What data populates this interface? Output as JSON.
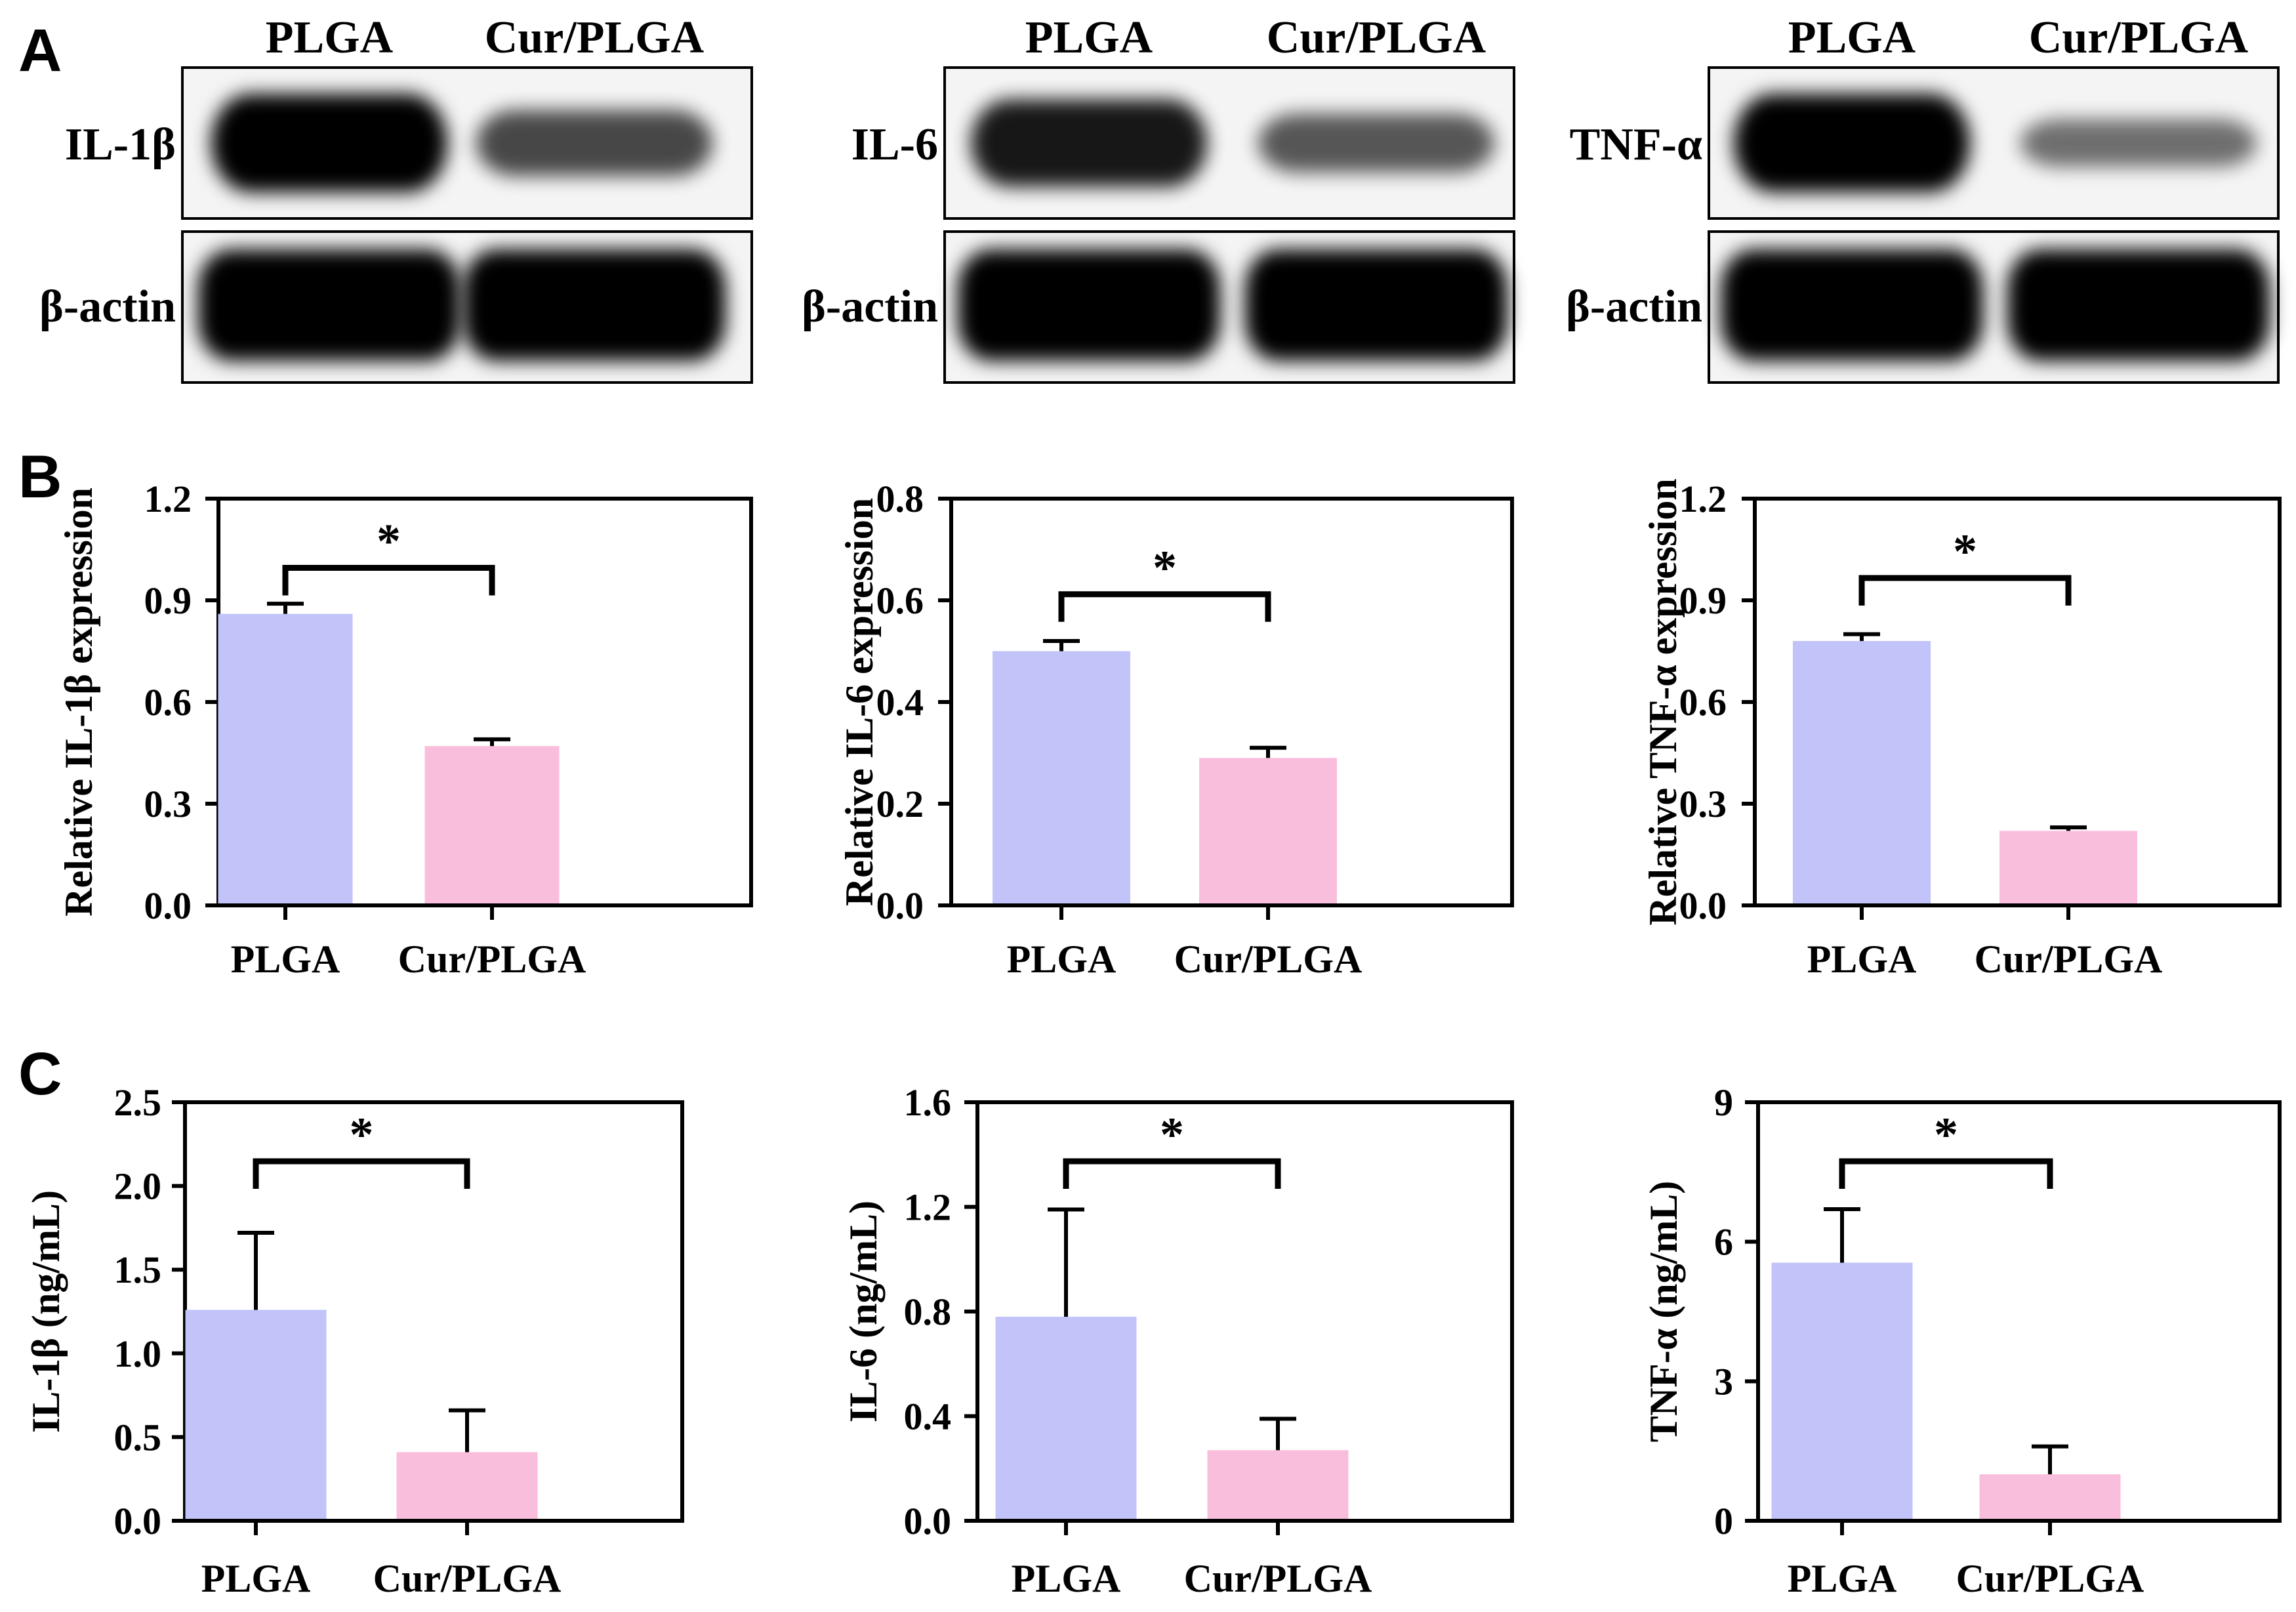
{
  "panel_labels": {
    "A": "A",
    "B": "B",
    "C": "C"
  },
  "colors": {
    "plga": "#c1c3f9",
    "cur_plga": "#fabedd",
    "axis": "#000000"
  },
  "blots": [
    {
      "lane_labels": [
        "PLGA",
        "Cur/PLGA"
      ],
      "protein_label": "IL-1β",
      "loading_label": "β-actin",
      "protein_band_intensity": [
        1.0,
        0.55
      ],
      "loading_band_intensity": [
        1.0,
        1.0
      ]
    },
    {
      "lane_labels": [
        "PLGA",
        "Cur/PLGA"
      ],
      "protein_label": "IL-6",
      "loading_label": "β-actin",
      "protein_band_intensity": [
        0.85,
        0.45
      ],
      "loading_band_intensity": [
        1.0,
        1.0
      ]
    },
    {
      "lane_labels": [
        "PLGA",
        "Cur/PLGA"
      ],
      "protein_label": "TNF-α",
      "loading_label": "β-actin",
      "protein_band_intensity": [
        1.0,
        0.3
      ],
      "loading_band_intensity": [
        1.0,
        1.0
      ]
    }
  ],
  "chart_data": [
    {
      "type": "bar",
      "panel": "B",
      "categories": [
        "PLGA",
        "Cur/PLGA"
      ],
      "values": [
        0.86,
        0.47
      ],
      "errors": [
        0.03,
        0.02
      ],
      "ylabel": "Relative IL-1β expression",
      "ylim": [
        0,
        1.2
      ],
      "yticks": [
        "0.0",
        "0.3",
        "0.6",
        "0.9",
        "1.2"
      ],
      "significance": "*"
    },
    {
      "type": "bar",
      "panel": "B",
      "categories": [
        "PLGA",
        "Cur/PLGA"
      ],
      "values": [
        0.5,
        0.29
      ],
      "errors": [
        0.02,
        0.02
      ],
      "ylabel": "Relative IL-6 expression",
      "ylim": [
        0,
        0.8
      ],
      "yticks": [
        "0.0",
        "0.2",
        "0.4",
        "0.6",
        "0.8"
      ],
      "significance": "*"
    },
    {
      "type": "bar",
      "panel": "B",
      "categories": [
        "PLGA",
        "Cur/PLGA"
      ],
      "values": [
        0.78,
        0.22
      ],
      "errors": [
        0.02,
        0.01
      ],
      "ylabel": "Relative TNF-α expression",
      "ylim": [
        0,
        1.2
      ],
      "yticks": [
        "0.0",
        "0.3",
        "0.6",
        "0.9",
        "1.2"
      ],
      "significance": "*"
    },
    {
      "type": "bar",
      "panel": "C",
      "categories": [
        "PLGA",
        "Cur/PLGA"
      ],
      "values": [
        1.26,
        0.41
      ],
      "errors": [
        0.46,
        0.25
      ],
      "ylabel": "IL-1β (ng/mL)",
      "ylim": [
        0,
        2.5
      ],
      "yticks": [
        "0.0",
        "0.5",
        "1.0",
        "1.5",
        "2.0",
        "2.5"
      ],
      "significance": "*"
    },
    {
      "type": "bar",
      "panel": "C",
      "categories": [
        "PLGA",
        "Cur/PLGA"
      ],
      "values": [
        0.78,
        0.27
      ],
      "errors": [
        0.41,
        0.12
      ],
      "ylabel": "IL-6 (ng/mL)",
      "ylim": [
        0,
        1.6
      ],
      "yticks": [
        "0.0",
        "0.4",
        "0.8",
        "1.2",
        "1.6"
      ],
      "significance": "*"
    },
    {
      "type": "bar",
      "panel": "C",
      "categories": [
        "PLGA",
        "Cur/PLGA"
      ],
      "values": [
        5.55,
        1.0
      ],
      "errors": [
        1.15,
        0.6
      ],
      "ylabel": "TNF-α (ng/mL)",
      "ylim": [
        0,
        9
      ],
      "yticks": [
        "0",
        "3",
        "6",
        "9"
      ],
      "significance": "*"
    }
  ]
}
